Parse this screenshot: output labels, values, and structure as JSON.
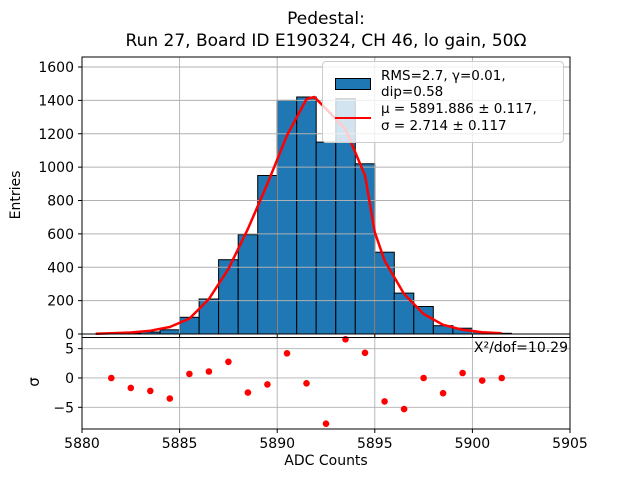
{
  "figure": {
    "title_line1": "Pedestal:",
    "title_line2": "Run 27, Board ID E190324, CH 46, lo gain, 50Ω"
  },
  "legend": {
    "hist_entry": "RMS=2.7, γ=0.01, dip=0.58",
    "fit_entry_line1": "μ = 5891.886 ± 0.117,",
    "fit_entry_line2": "σ = 2.714 ± 0.117"
  },
  "colors": {
    "bar_fill": "#1f77b4",
    "bar_edge": "#000000",
    "fit_line": "#ff0000",
    "residual_point": "#ff0000",
    "grid": "#b0b0b0",
    "axes": "#000000"
  },
  "chart_data": [
    {
      "type": "bar",
      "role": "pedestal-histogram",
      "ylabel": "Entries",
      "xlabel": "",
      "xlim": [
        5880,
        5905
      ],
      "ylim": [
        0,
        1660
      ],
      "xticks": [
        5880,
        5885,
        5890,
        5895,
        5900,
        5905
      ],
      "yticks": [
        0,
        200,
        400,
        600,
        800,
        1000,
        1200,
        1400,
        1600
      ],
      "grid": true,
      "legend_position": "upper right",
      "bin_width": 1,
      "bin_left_edges": [
        5881,
        5882,
        5883,
        5884,
        5885,
        5886,
        5887,
        5888,
        5889,
        5890,
        5891,
        5892,
        5893,
        5894,
        5895,
        5896,
        5897,
        5898,
        5899,
        5900,
        5901
      ],
      "values": [
        3,
        5,
        12,
        25,
        100,
        210,
        445,
        595,
        950,
        1400,
        1420,
        1150,
        1410,
        1020,
        490,
        245,
        165,
        50,
        35,
        12,
        4
      ],
      "fit_curve": {
        "x": [
          5880.7,
          5881.5,
          5882.5,
          5883.5,
          5884.5,
          5885.5,
          5886.5,
          5887.5,
          5888.5,
          5889.5,
          5890.5,
          5891.5,
          5891.9,
          5892.5,
          5893.5,
          5894.5,
          5895.0,
          5895.5,
          5896.5,
          5897.5,
          5898.5,
          5899.5,
          5900.5,
          5901.5
        ],
        "y": [
          2,
          4,
          9,
          20,
          42,
          92,
          210,
          390,
          630,
          900,
          1190,
          1408,
          1420,
          1350,
          1228,
          950,
          610,
          440,
          240,
          120,
          55,
          25,
          10,
          4
        ]
      }
    },
    {
      "type": "scatter",
      "role": "fit-residuals",
      "ylabel": "σ",
      "xlabel": "ADC Counts",
      "xlim": [
        5880,
        5905
      ],
      "ylim": [
        -8.7,
        6.9
      ],
      "xticks": [
        5880,
        5885,
        5890,
        5895,
        5900,
        5905
      ],
      "yticks": [
        -5,
        0,
        5
      ],
      "grid": true,
      "annotation": "X²/dof=10.29",
      "x": [
        5881.5,
        5882.5,
        5883.5,
        5884.5,
        5885.5,
        5886.5,
        5887.5,
        5888.5,
        5889.5,
        5890.5,
        5891.5,
        5892.5,
        5893.5,
        5894.5,
        5895.5,
        5896.5,
        5897.5,
        5898.5,
        5899.5,
        5900.5,
        5901.5
      ],
      "y": [
        0.0,
        -1.7,
        -2.2,
        -3.5,
        0.7,
        1.1,
        2.75,
        -2.5,
        -1.1,
        4.2,
        -0.9,
        -7.8,
        6.6,
        4.3,
        -4.0,
        -5.3,
        0.0,
        -2.6,
        0.85,
        -0.45,
        0.0
      ]
    }
  ]
}
